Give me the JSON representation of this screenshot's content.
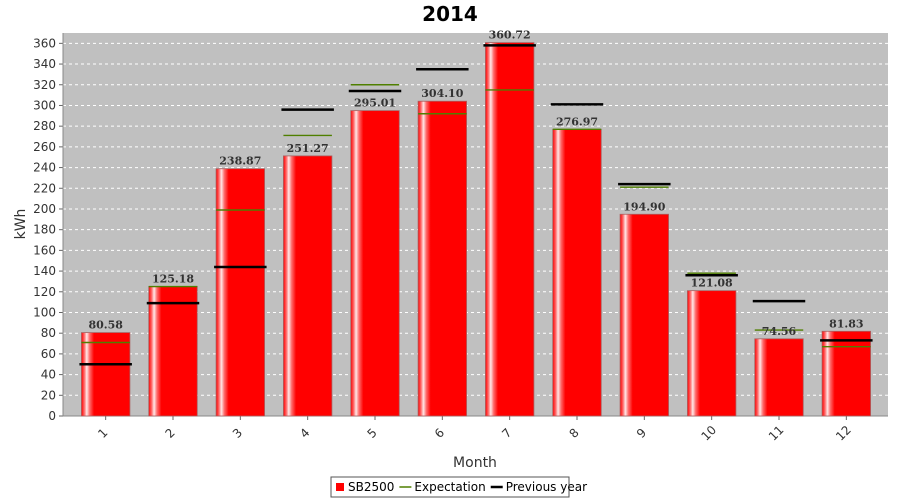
{
  "chart_data": {
    "type": "bar",
    "title": "2014",
    "xlabel": "Month",
    "ylabel": "kWh",
    "categories": [
      "1",
      "2",
      "3",
      "4",
      "5",
      "6",
      "7",
      "8",
      "9",
      "10",
      "11",
      "12"
    ],
    "series": [
      {
        "name": "SB2500",
        "kind": "bar",
        "color": "#ff0000",
        "values": [
          80.58,
          125.18,
          238.87,
          251.27,
          295.01,
          304.1,
          360.72,
          276.97,
          194.9,
          121.08,
          74.56,
          81.83
        ],
        "labels": [
          "80.58",
          "125.18",
          "238.87",
          "251.27",
          "295.01",
          "304.10",
          "360.72",
          "276.97",
          "194.90",
          "121.08",
          "74.56",
          "81.83"
        ]
      },
      {
        "name": "Expectation",
        "kind": "marker",
        "color": "#4f7f00",
        "values": [
          71,
          125,
          199,
          271,
          320,
          292,
          315,
          277,
          221,
          138,
          83,
          67
        ]
      },
      {
        "name": "Previous year",
        "kind": "marker",
        "color": "#000000",
        "values": [
          50,
          109,
          144,
          296,
          314,
          335,
          358,
          301,
          224,
          136,
          111,
          73
        ]
      }
    ],
    "ylim": [
      0,
      370
    ],
    "yticks": [
      0,
      20,
      40,
      60,
      80,
      100,
      120,
      140,
      160,
      180,
      200,
      220,
      240,
      260,
      280,
      300,
      320,
      340,
      360
    ],
    "grid": true,
    "legend_position": "bottom",
    "colors": {
      "plot_background": "#c0c0c0",
      "gridline": "#ffffff"
    }
  }
}
